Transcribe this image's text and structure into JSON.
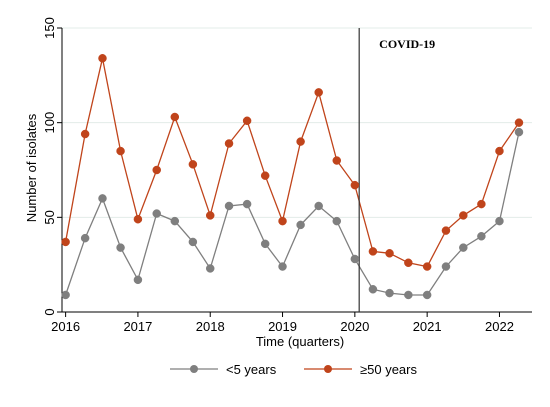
{
  "chart_data": {
    "type": "line",
    "xlabel": "Time (quarters)",
    "ylabel": "Number of isolates",
    "xlim": [
      2015.95,
      2022.45
    ],
    "ylim": [
      0,
      150
    ],
    "x_ticks": [
      2016,
      2017,
      2018,
      2019,
      2020,
      2021,
      2022
    ],
    "y_ticks": [
      0,
      50,
      100,
      150
    ],
    "grid": "horizontal",
    "legend_position": "bottom",
    "x": [
      2016.0,
      2016.27,
      2016.51,
      2016.76,
      2017.0,
      2017.26,
      2017.51,
      2017.76,
      2018.0,
      2018.26,
      2018.51,
      2018.76,
      2019.0,
      2019.25,
      2019.5,
      2019.75,
      2020.0,
      2020.25,
      2020.48,
      2020.74,
      2021.0,
      2021.26,
      2021.5,
      2021.75,
      2022.0,
      2022.27
    ],
    "series": [
      {
        "name": "<5 years",
        "color": "#7f7f7f",
        "values": [
          9,
          39,
          60,
          34,
          17,
          52,
          48,
          37,
          23,
          56,
          57,
          36,
          24,
          46,
          56,
          48,
          28,
          12,
          10,
          9,
          9,
          24,
          34,
          40,
          48,
          95
        ]
      },
      {
        "name": "≥50 years",
        "color": "#c0441b",
        "values": [
          37,
          94,
          134,
          85,
          49,
          75,
          103,
          78,
          51,
          89,
          101,
          72,
          48,
          90,
          116,
          80,
          67,
          32,
          31,
          26,
          24,
          43,
          51,
          57,
          85,
          100
        ]
      }
    ],
    "annotations": [
      {
        "type": "vline",
        "x": 2020.06,
        "label": "COVID-19"
      }
    ]
  }
}
